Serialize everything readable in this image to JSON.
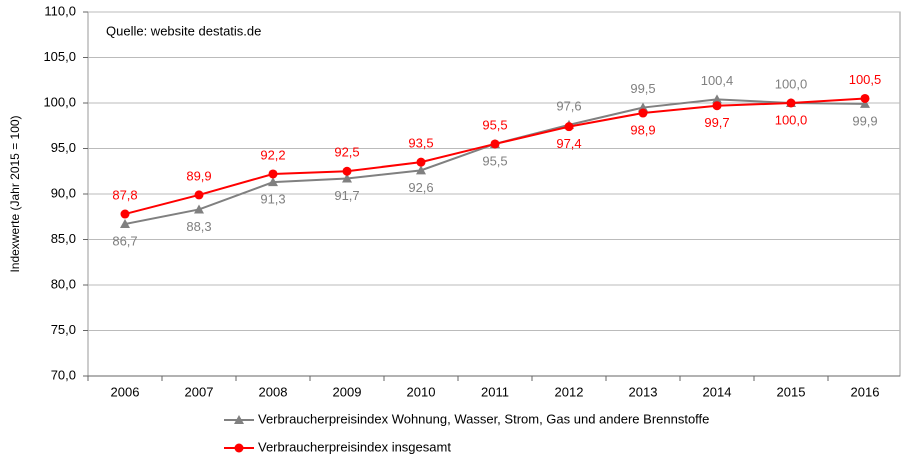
{
  "chart_data": {
    "type": "line",
    "annotation": "Quelle: website destatis.de",
    "y_label": "Indexwerte (Jahr 2015 = 100)",
    "categories": [
      "2006",
      "2007",
      "2008",
      "2009",
      "2010",
      "2011",
      "2012",
      "2013",
      "2014",
      "2015",
      "2016"
    ],
    "series": [
      {
        "name": "Verbraucherpreisindex Wohnung, Wasser, Strom, Gas und andere Brennstoffe",
        "color": "#808080",
        "marker": "triangle",
        "values": [
          86.7,
          88.3,
          91.3,
          91.7,
          92.6,
          95.5,
          97.6,
          99.5,
          100.4,
          100.0,
          99.9
        ],
        "value_labels": [
          "86,7",
          "88,3",
          "91,3",
          "91,7",
          "92,6",
          "95,5",
          "97,6",
          "99,5",
          "100,4",
          "100,0",
          "99,9"
        ]
      },
      {
        "name": "Verbraucherpreisindex insgesamt",
        "color": "#ff0000",
        "marker": "circle",
        "values": [
          87.8,
          89.9,
          92.2,
          92.5,
          93.5,
          95.5,
          97.4,
          98.9,
          99.7,
          100.0,
          100.5
        ],
        "value_labels": [
          "87,8",
          "89,9",
          "92,2",
          "92,5",
          "93,5",
          "95,5",
          "97,4",
          "98,9",
          "99,7",
          "100,0",
          "100,5"
        ]
      }
    ],
    "ylim": [
      70,
      110
    ],
    "yticks": [
      {
        "value": 70,
        "label": "70,0"
      },
      {
        "value": 75,
        "label": "75,0"
      },
      {
        "value": 80,
        "label": "80,0"
      },
      {
        "value": 85,
        "label": "85,0"
      },
      {
        "value": 90,
        "label": "90,0"
      },
      {
        "value": 95,
        "label": "95,0"
      },
      {
        "value": 100,
        "label": "100,0"
      },
      {
        "value": 105,
        "label": "105,0"
      },
      {
        "value": 110,
        "label": "110,0"
      }
    ],
    "grid": true
  }
}
